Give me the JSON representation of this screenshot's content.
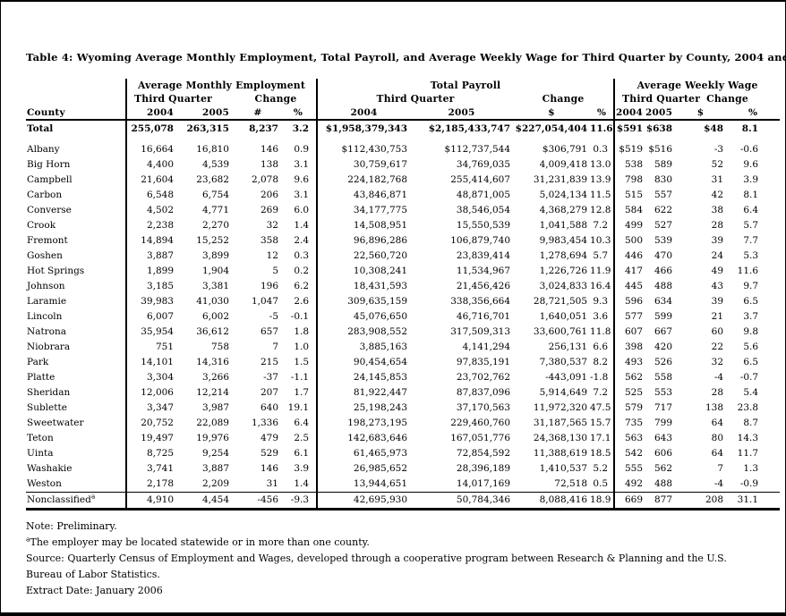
{
  "title": "Table 4: Wyoming Average Monthly Employment, Total Payroll, and Average Weekly Wage for Third Quarter by County, 2004 and 2005",
  "colors": {
    "text": "#000000",
    "background": "#ffffff",
    "rules": "#000000"
  },
  "table": {
    "groups": [
      {
        "label": "Average Monthly Employment"
      },
      {
        "label": "Total Payroll"
      },
      {
        "label": "Average Weekly Wage"
      }
    ],
    "subheaders": {
      "third_quarter": "Third Quarter",
      "change": "Change"
    },
    "county_header": "County",
    "col_headers": {
      "emp": [
        "2004",
        "2005",
        "#",
        "%"
      ],
      "pay": [
        "2004",
        "2005",
        "$",
        "%"
      ],
      "wage": [
        "2004",
        "2005",
        "$",
        "%"
      ]
    },
    "total_row": {
      "county": "Total",
      "sup": "",
      "values": [
        "255,078",
        "263,315",
        "8,237",
        "3.2",
        "$1,958,379,343",
        "$2,185,433,747",
        "$227,054,404",
        "11.6",
        "$591",
        "$638",
        "$48",
        "8.1"
      ]
    },
    "rows": [
      {
        "county": "Albany",
        "sup": "",
        "values": [
          "16,664",
          "16,810",
          "146",
          "0.9",
          "$112,430,753",
          "$112,737,544",
          "$306,791",
          "0.3",
          "$519",
          "$516",
          "-3",
          "-0.6"
        ]
      },
      {
        "county": "Big Horn",
        "sup": "",
        "values": [
          "4,400",
          "4,539",
          "138",
          "3.1",
          "30,759,617",
          "34,769,035",
          "4,009,418",
          "13.0",
          "538",
          "589",
          "52",
          "9.6"
        ]
      },
      {
        "county": "Campbell",
        "sup": "",
        "values": [
          "21,604",
          "23,682",
          "2,078",
          "9.6",
          "224,182,768",
          "255,414,607",
          "31,231,839",
          "13.9",
          "798",
          "830",
          "31",
          "3.9"
        ]
      },
      {
        "county": "Carbon",
        "sup": "",
        "values": [
          "6,548",
          "6,754",
          "206",
          "3.1",
          "43,846,871",
          "48,871,005",
          "5,024,134",
          "11.5",
          "515",
          "557",
          "42",
          "8.1"
        ]
      },
      {
        "county": "Converse",
        "sup": "",
        "values": [
          "4,502",
          "4,771",
          "269",
          "6.0",
          "34,177,775",
          "38,546,054",
          "4,368,279",
          "12.8",
          "584",
          "622",
          "38",
          "6.4"
        ]
      },
      {
        "county": "Crook",
        "sup": "",
        "values": [
          "2,238",
          "2,270",
          "32",
          "1.4",
          "14,508,951",
          "15,550,539",
          "1,041,588",
          "7.2",
          "499",
          "527",
          "28",
          "5.7"
        ]
      },
      {
        "county": "Fremont",
        "sup": "",
        "values": [
          "14,894",
          "15,252",
          "358",
          "2.4",
          "96,896,286",
          "106,879,740",
          "9,983,454",
          "10.3",
          "500",
          "539",
          "39",
          "7.7"
        ]
      },
      {
        "county": "Goshen",
        "sup": "",
        "values": [
          "3,887",
          "3,899",
          "12",
          "0.3",
          "22,560,720",
          "23,839,414",
          "1,278,694",
          "5.7",
          "446",
          "470",
          "24",
          "5.3"
        ]
      },
      {
        "county": "Hot Springs",
        "sup": "",
        "values": [
          "1,899",
          "1,904",
          "5",
          "0.2",
          "10,308,241",
          "11,534,967",
          "1,226,726",
          "11.9",
          "417",
          "466",
          "49",
          "11.6"
        ]
      },
      {
        "county": "Johnson",
        "sup": "",
        "values": [
          "3,185",
          "3,381",
          "196",
          "6.2",
          "18,431,593",
          "21,456,426",
          "3,024,833",
          "16.4",
          "445",
          "488",
          "43",
          "9.7"
        ]
      },
      {
        "county": "Laramie",
        "sup": "",
        "values": [
          "39,983",
          "41,030",
          "1,047",
          "2.6",
          "309,635,159",
          "338,356,664",
          "28,721,505",
          "9.3",
          "596",
          "634",
          "39",
          "6.5"
        ]
      },
      {
        "county": "Lincoln",
        "sup": "",
        "values": [
          "6,007",
          "6,002",
          "-5",
          "-0.1",
          "45,076,650",
          "46,716,701",
          "1,640,051",
          "3.6",
          "577",
          "599",
          "21",
          "3.7"
        ]
      },
      {
        "county": "Natrona",
        "sup": "",
        "values": [
          "35,954",
          "36,612",
          "657",
          "1.8",
          "283,908,552",
          "317,509,313",
          "33,600,761",
          "11.8",
          "607",
          "667",
          "60",
          "9.8"
        ]
      },
      {
        "county": "Niobrara",
        "sup": "",
        "values": [
          "751",
          "758",
          "7",
          "1.0",
          "3,885,163",
          "4,141,294",
          "256,131",
          "6.6",
          "398",
          "420",
          "22",
          "5.6"
        ]
      },
      {
        "county": "Park",
        "sup": "",
        "values": [
          "14,101",
          "14,316",
          "215",
          "1.5",
          "90,454,654",
          "97,835,191",
          "7,380,537",
          "8.2",
          "493",
          "526",
          "32",
          "6.5"
        ]
      },
      {
        "county": "Platte",
        "sup": "",
        "values": [
          "3,304",
          "3,266",
          "-37",
          "-1.1",
          "24,145,853",
          "23,702,762",
          "-443,091",
          "-1.8",
          "562",
          "558",
          "-4",
          "-0.7"
        ]
      },
      {
        "county": "Sheridan",
        "sup": "",
        "values": [
          "12,006",
          "12,214",
          "207",
          "1.7",
          "81,922,447",
          "87,837,096",
          "5,914,649",
          "7.2",
          "525",
          "553",
          "28",
          "5.4"
        ]
      },
      {
        "county": "Sublette",
        "sup": "",
        "values": [
          "3,347",
          "3,987",
          "640",
          "19.1",
          "25,198,243",
          "37,170,563",
          "11,972,320",
          "47.5",
          "579",
          "717",
          "138",
          "23.8"
        ]
      },
      {
        "county": "Sweetwater",
        "sup": "",
        "values": [
          "20,752",
          "22,089",
          "1,336",
          "6.4",
          "198,273,195",
          "229,460,760",
          "31,187,565",
          "15.7",
          "735",
          "799",
          "64",
          "8.7"
        ]
      },
      {
        "county": "Teton",
        "sup": "",
        "values": [
          "19,497",
          "19,976",
          "479",
          "2.5",
          "142,683,646",
          "167,051,776",
          "24,368,130",
          "17.1",
          "563",
          "643",
          "80",
          "14.3"
        ]
      },
      {
        "county": "Uinta",
        "sup": "",
        "values": [
          "8,725",
          "9,254",
          "529",
          "6.1",
          "61,465,973",
          "72,854,592",
          "11,388,619",
          "18.5",
          "542",
          "606",
          "64",
          "11.7"
        ]
      },
      {
        "county": "Washakie",
        "sup": "",
        "values": [
          "3,741",
          "3,887",
          "146",
          "3.9",
          "26,985,652",
          "28,396,189",
          "1,410,537",
          "5.2",
          "555",
          "562",
          "7",
          "1.3"
        ]
      },
      {
        "county": "Weston",
        "sup": "",
        "values": [
          "2,178",
          "2,209",
          "31",
          "1.4",
          "13,944,651",
          "14,017,169",
          "72,518",
          "0.5",
          "492",
          "488",
          "-4",
          "-0.9"
        ]
      },
      {
        "county": "Nonclassified",
        "sup": "a",
        "values": [
          "4,910",
          "4,454",
          "-456",
          "-9.3",
          "42,695,930",
          "50,784,346",
          "8,088,416",
          "18.9",
          "669",
          "877",
          "208",
          "31.1"
        ]
      }
    ]
  },
  "notes": [
    {
      "sup": "",
      "text": "Note: Preliminary."
    },
    {
      "sup": "a",
      "text": "The employer may be located statewide or in more than one county."
    },
    {
      "sup": "",
      "text": "Source: Quarterly Census of Employment and Wages, developed through a cooperative program between Research & Planning and the U.S. Bureau of Labor Statistics."
    },
    {
      "sup": "",
      "text": "Extract Date: January 2006"
    }
  ]
}
